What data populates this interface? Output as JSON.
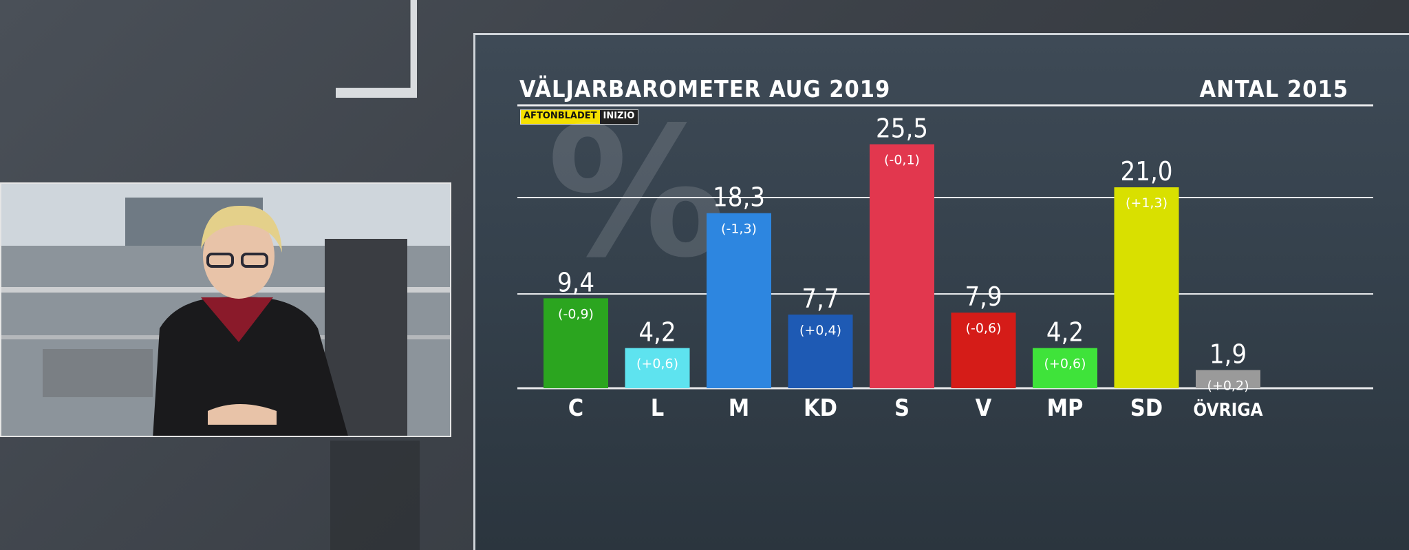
{
  "header": {
    "title": "VÄLJARBAROMETER AUG 2019",
    "subtitle": "ANTAL 2015",
    "logo_part1": "AFTONBLADET",
    "logo_part2": "INIZIO"
  },
  "chart_data": {
    "type": "bar",
    "categories": [
      "C",
      "L",
      "M",
      "KD",
      "S",
      "V",
      "MP",
      "SD",
      "ÖVRIGA"
    ],
    "values": [
      9.4,
      4.2,
      18.3,
      7.7,
      25.5,
      7.9,
      4.2,
      21.0,
      1.9
    ],
    "value_labels": [
      "9,4",
      "4,2",
      "18,3",
      "7,7",
      "25,5",
      "7,9",
      "4,2",
      "21,0",
      "1,9"
    ],
    "changes": [
      "(-0,9)",
      "(+0,6)",
      "(-1,3)",
      "(+0,4)",
      "(-0,1)",
      "(-0,6)",
      "(+0,6)",
      "(+1,3)",
      "(+0,2)"
    ],
    "colors": [
      "#2ba51f",
      "#5ee3ef",
      "#2d86e0",
      "#1e5ab4",
      "#e2374e",
      "#d51c18",
      "#3fe33a",
      "#d9e000",
      "#9a9a9a"
    ],
    "ylim": [
      0,
      30
    ],
    "grid": true,
    "title": "VÄLJARBAROMETER AUG 2019",
    "xlabel": "",
    "ylabel": ""
  }
}
